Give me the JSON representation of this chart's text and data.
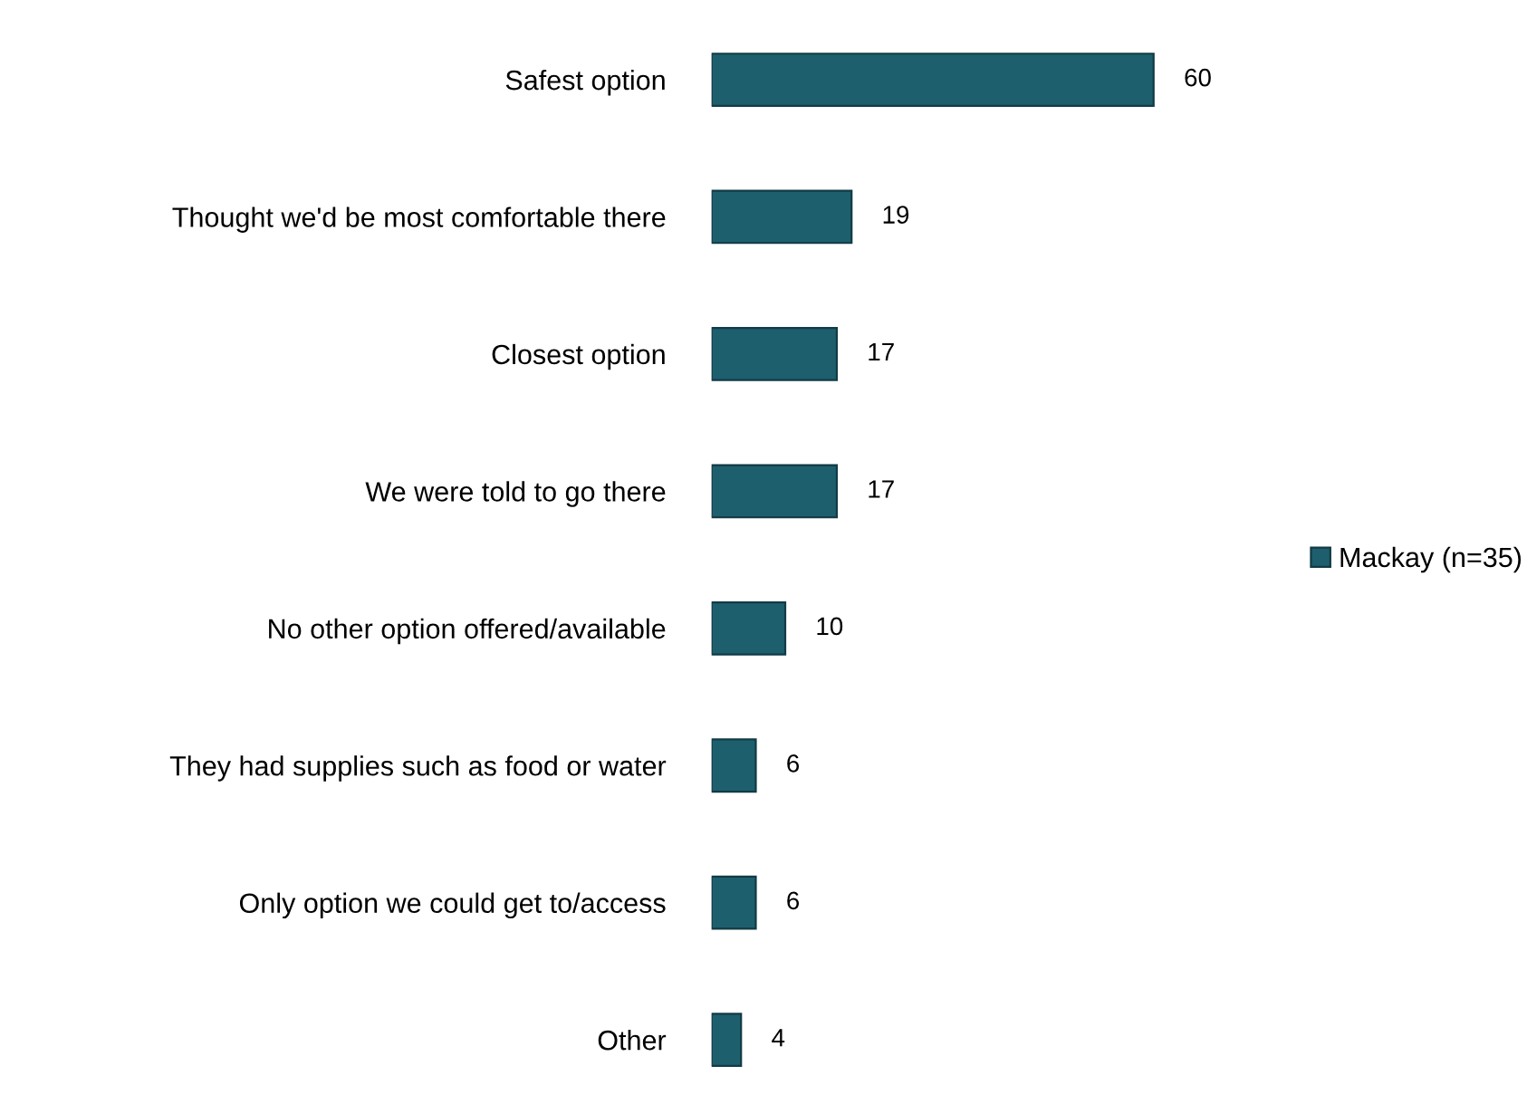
{
  "chart_data": {
    "type": "bar",
    "orientation": "horizontal",
    "data_labels": true,
    "legend": "right",
    "categories": [
      "Safest option",
      "Thought we'd be most comfortable there",
      "Closest option",
      "We were told to go there",
      "No other option offered/available",
      "They had supplies such as food or water",
      "Only option we could get to/access",
      "Other"
    ],
    "series": [
      {
        "name": "Mackay (n=35)",
        "color": "#1e5f6e",
        "values": [
          60,
          19,
          17,
          17,
          10,
          6,
          6,
          4
        ]
      }
    ]
  }
}
